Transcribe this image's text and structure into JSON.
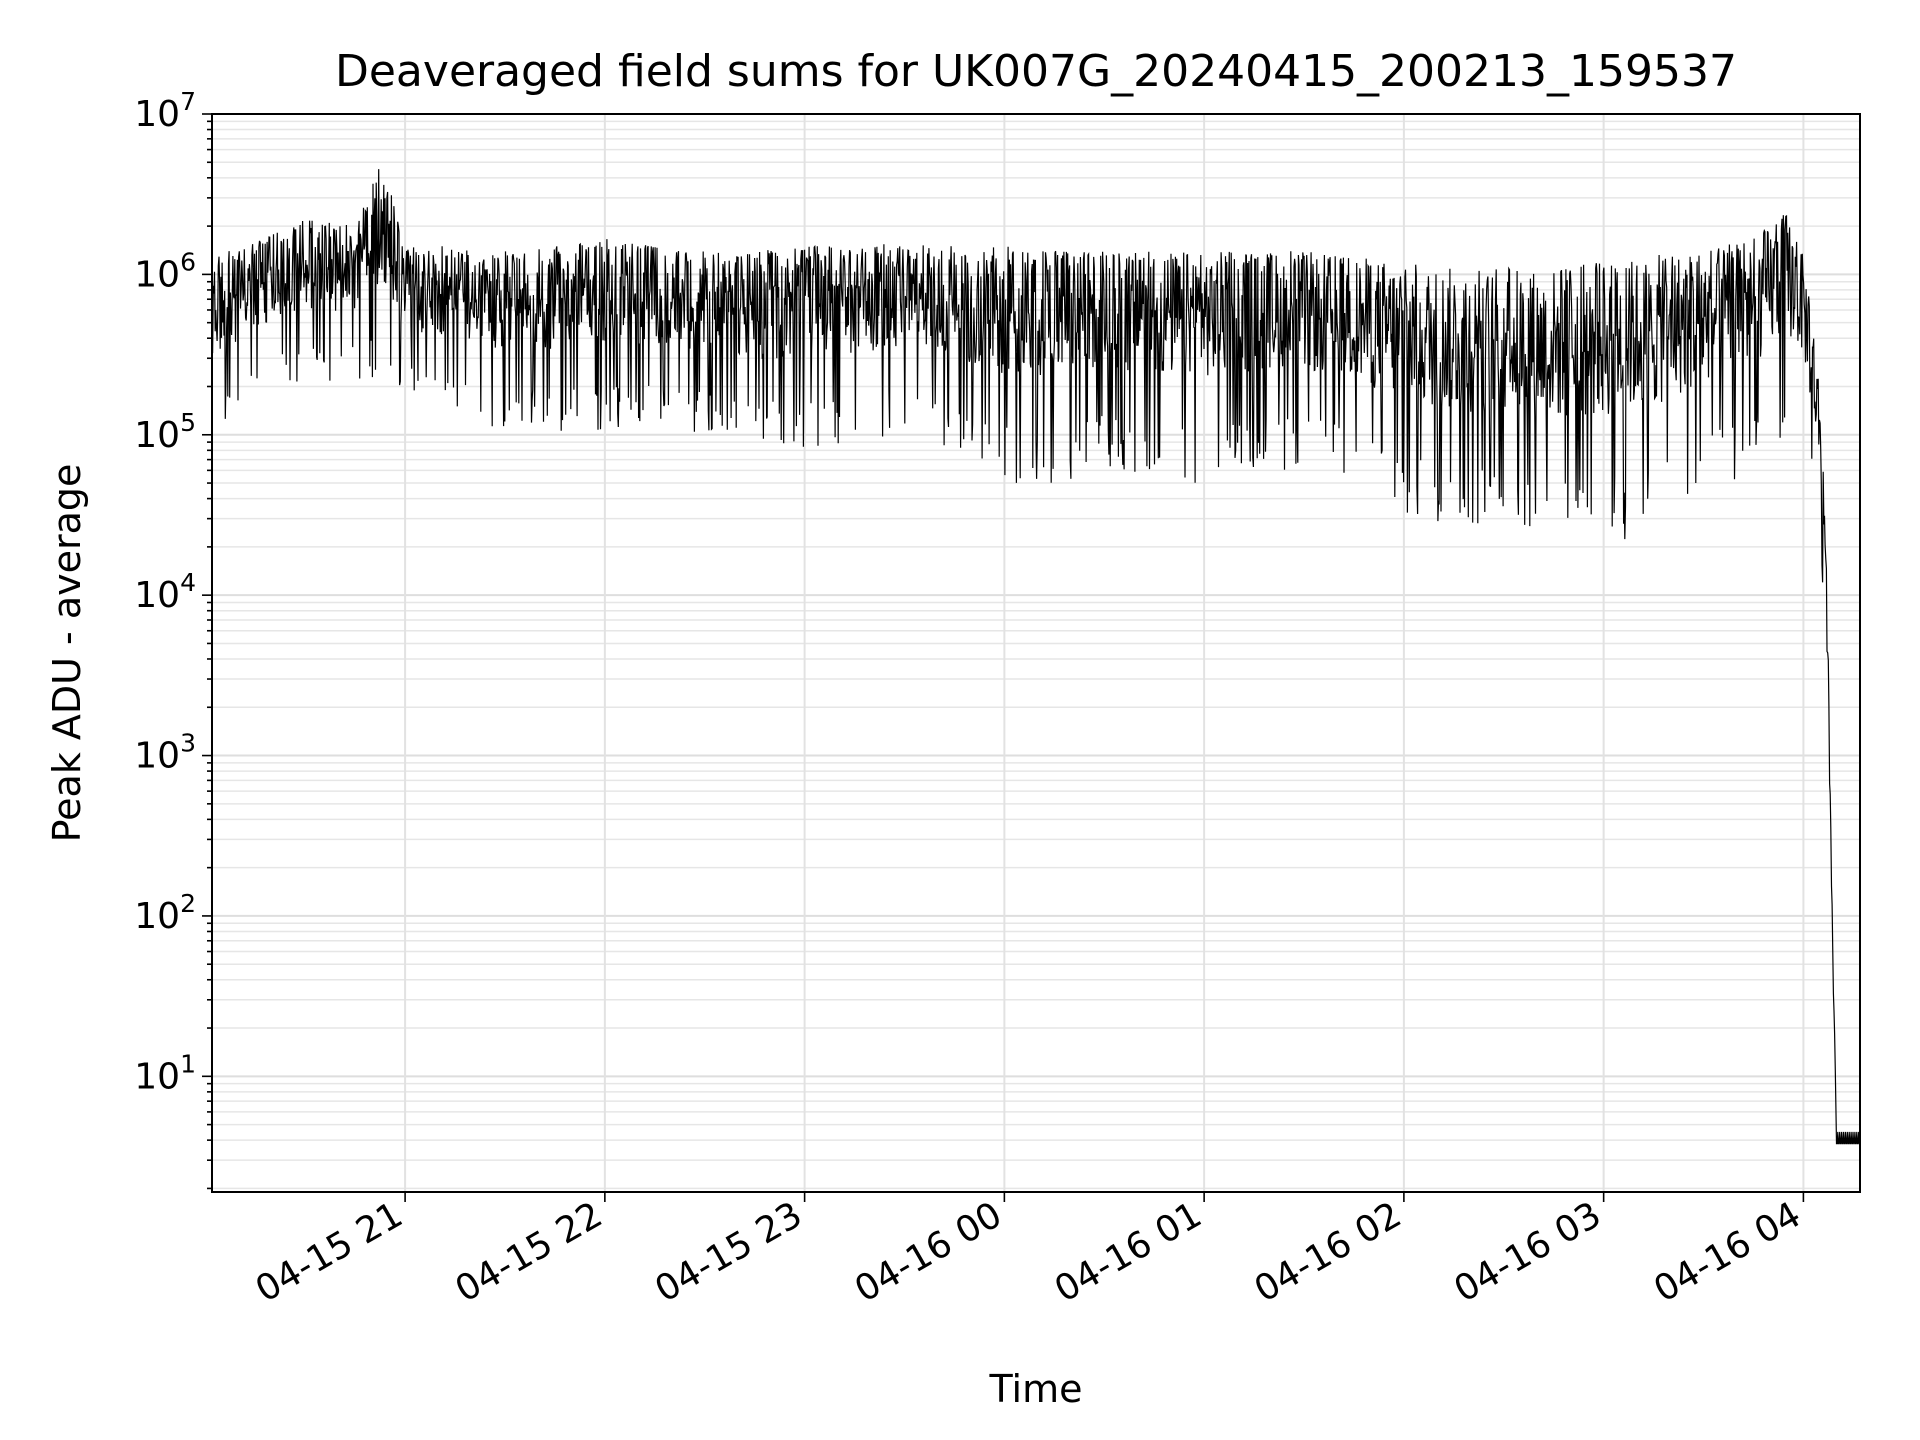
{
  "chart_data": {
    "type": "line",
    "title": "Deaveraged field sums for UK007G_20240415_200213_159537",
    "xlabel": "Time",
    "ylabel": "Peak ADU - average",
    "y_scale": "log",
    "ylim": [
      1.9,
      10000000
    ],
    "xlim": [
      "04-15 20:02",
      "04-16 04:17"
    ],
    "x_ticks": [
      "04-15 21",
      "04-15 22",
      "04-15 23",
      "04-16 00",
      "04-16 01",
      "04-16 02",
      "04-16 03",
      "04-16 04"
    ],
    "y_ticks": [
      {
        "base": "10",
        "exp": "1"
      },
      {
        "base": "10",
        "exp": "2"
      },
      {
        "base": "10",
        "exp": "3"
      },
      {
        "base": "10",
        "exp": "4"
      },
      {
        "base": "10",
        "exp": "5"
      },
      {
        "base": "10",
        "exp": "6"
      },
      {
        "base": "10",
        "exp": "7"
      }
    ],
    "grid": true,
    "line_color": "#000000",
    "series": [
      {
        "x": [
          "04-15 20:02",
          "04-15 20:15",
          "04-15 20:30",
          "04-15 20:45",
          "04-15 20:53",
          "04-15 21:00",
          "04-15 21:15",
          "04-15 21:30",
          "04-15 21:45",
          "04-15 22:00",
          "04-15 22:15",
          "04-15 22:30",
          "04-15 22:45",
          "04-15 23:00",
          "04-15 23:15",
          "04-15 23:30",
          "04-15 23:45",
          "04-16 00:00",
          "04-16 00:15",
          "04-16 00:30",
          "04-16 00:45",
          "04-16 01:00",
          "04-16 01:15",
          "04-16 01:30",
          "04-16 01:45",
          "04-16 02:00",
          "04-16 02:15",
          "04-16 02:30",
          "04-16 02:45",
          "04-16 03:00",
          "04-16 03:15",
          "04-16 03:30",
          "04-16 03:45",
          "04-16 03:55",
          "04-16 04:00",
          "04-16 04:03",
          "04-16 04:05",
          "04-16 04:07",
          "04-16 04:08",
          "04-16 04:10",
          "04-16 04:12",
          "04-16 04:17"
        ],
        "high": [
          1300000,
          1600000,
          2200000,
          2000000,
          5500000,
          1500000,
          1500000,
          1400000,
          1500000,
          1700000,
          1500000,
          1400000,
          1400000,
          1500000,
          1500000,
          1600000,
          1600000,
          1500000,
          1400000,
          1400000,
          1400000,
          1400000,
          1400000,
          1400000,
          1300000,
          1200000,
          1100000,
          1100000,
          1100000,
          1200000,
          1300000,
          1500000,
          1700000,
          2500000,
          1300000,
          500000,
          200000,
          20000,
          700,
          3.8,
          3.8,
          4.5
        ],
        "low": [
          100000,
          150000,
          200000,
          220000,
          200000,
          150000,
          150000,
          100000,
          100000,
          100000,
          110000,
          100000,
          80000,
          80000,
          90000,
          100000,
          80000,
          50000,
          50000,
          60000,
          50000,
          50000,
          60000,
          60000,
          50000,
          30000,
          25000,
          25000,
          20000,
          20000,
          25000,
          40000,
          60000,
          100000,
          100000,
          40000,
          20000,
          5000,
          280,
          3.8,
          3.8,
          3.8
        ]
      }
    ]
  }
}
